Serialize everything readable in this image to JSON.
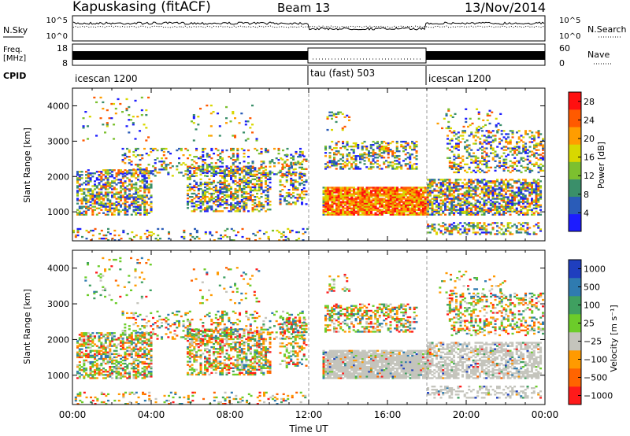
{
  "header": {
    "station": "Kapuskasing (fitACF)",
    "beam": "Beam 13",
    "date": "13/Nov/2014"
  },
  "noise_panel": {
    "left_label": "N.Sky",
    "left_ticks": [
      "10^5",
      "10^0"
    ],
    "right_label": "N.Search",
    "right_ticks": [
      "10^5",
      "10^0"
    ]
  },
  "freq_panel": {
    "left_label_1": "Freq.",
    "left_label_2": "[MHz]",
    "left_ticks": [
      "18",
      "8"
    ],
    "right_label": "Nave",
    "right_ticks": [
      "60",
      "0"
    ]
  },
  "cpid_panel": {
    "label": "CPID",
    "segments": [
      {
        "text": "icescan 1200",
        "start_hour": 0,
        "end_hour": 12
      },
      {
        "text": "tau (fast) 503",
        "start_hour": 12,
        "end_hour": 18
      },
      {
        "text": "icescan 1200",
        "start_hour": 18,
        "end_hour": 24
      }
    ]
  },
  "chart_data": [
    {
      "type": "heatmap",
      "name": "power",
      "ylabel": "Slant Range [km]",
      "ylim": [
        180,
        4500
      ],
      "y_ticks": [
        "1000",
        "2000",
        "3000",
        "4000"
      ],
      "x_ticks": [
        "00:00",
        "04:00",
        "08:00",
        "12:00",
        "16:00",
        "20:00",
        "00:00"
      ],
      "xlim_hours": [
        0,
        24
      ],
      "colorbar_label": "Power [dB]",
      "colorbar_ticks": [
        "4",
        "8",
        "12",
        "16",
        "20",
        "24",
        "28"
      ],
      "colorbar_range": [
        0,
        30
      ],
      "colors": [
        "#1c1cff",
        "#2a5cb8",
        "#3a8f6a",
        "#7cc02f",
        "#d8d800",
        "#ff9d00",
        "#ff5a00",
        "#ff1010"
      ]
    },
    {
      "type": "heatmap",
      "name": "velocity",
      "ylabel": "Slant Range [km]",
      "ylim": [
        180,
        4500
      ],
      "y_ticks": [
        "1000",
        "2000",
        "3000",
        "4000"
      ],
      "x_ticks": [
        "00:00",
        "04:00",
        "08:00",
        "12:00",
        "16:00",
        "20:00",
        "00:00"
      ],
      "xlim_hours": [
        0,
        24
      ],
      "xlabel": "Time UT",
      "colorbar_label": "Velocity [m s⁻¹]",
      "colorbar_ticks": [
        "1000",
        "500",
        "100",
        "25",
        "−25",
        "−100",
        "−500",
        "−1000"
      ],
      "colors": [
        "#1f3fbf",
        "#2f7bb0",
        "#3fa060",
        "#6ccc2a",
        "#c4c4bc",
        "#ff9a00",
        "#ff6400",
        "#ff1a1a"
      ]
    }
  ]
}
